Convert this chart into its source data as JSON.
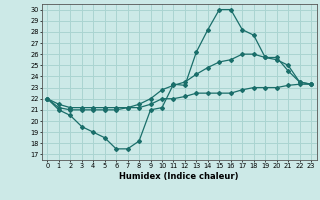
{
  "xlabel": "Humidex (Indice chaleur)",
  "bg_color": "#cce9e7",
  "grid_color": "#aad4d1",
  "line_color": "#1a6e6a",
  "xlim": [
    -0.5,
    23.5
  ],
  "ylim": [
    16.5,
    30.5
  ],
  "yticks": [
    17,
    18,
    19,
    20,
    21,
    22,
    23,
    24,
    25,
    26,
    27,
    28,
    29,
    30
  ],
  "xticks": [
    0,
    1,
    2,
    3,
    4,
    5,
    6,
    7,
    8,
    9,
    10,
    11,
    12,
    13,
    14,
    15,
    16,
    17,
    18,
    19,
    20,
    21,
    22,
    23
  ],
  "series": [
    [
      22,
      21,
      20.5,
      19.5,
      19,
      18.5,
      17.5,
      17.5,
      18.2,
      21,
      21.2,
      23.3,
      23.2,
      26.2,
      28.2,
      30,
      30,
      28.2,
      27.7,
      25.7,
      25.7,
      24.5,
      23.5,
      23.3
    ],
    [
      22,
      21.2,
      21,
      21,
      21,
      21,
      21,
      21.2,
      21.5,
      22,
      22.8,
      23.2,
      23.5,
      24.2,
      24.8,
      25.3,
      25.5,
      26,
      26,
      25.7,
      25.5,
      25,
      23.5,
      23.3
    ],
    [
      22,
      21.5,
      21.2,
      21.2,
      21.2,
      21.2,
      21.2,
      21.2,
      21.2,
      21.5,
      22,
      22,
      22.2,
      22.5,
      22.5,
      22.5,
      22.5,
      22.8,
      23,
      23,
      23,
      23.2,
      23.3,
      23.3
    ]
  ]
}
